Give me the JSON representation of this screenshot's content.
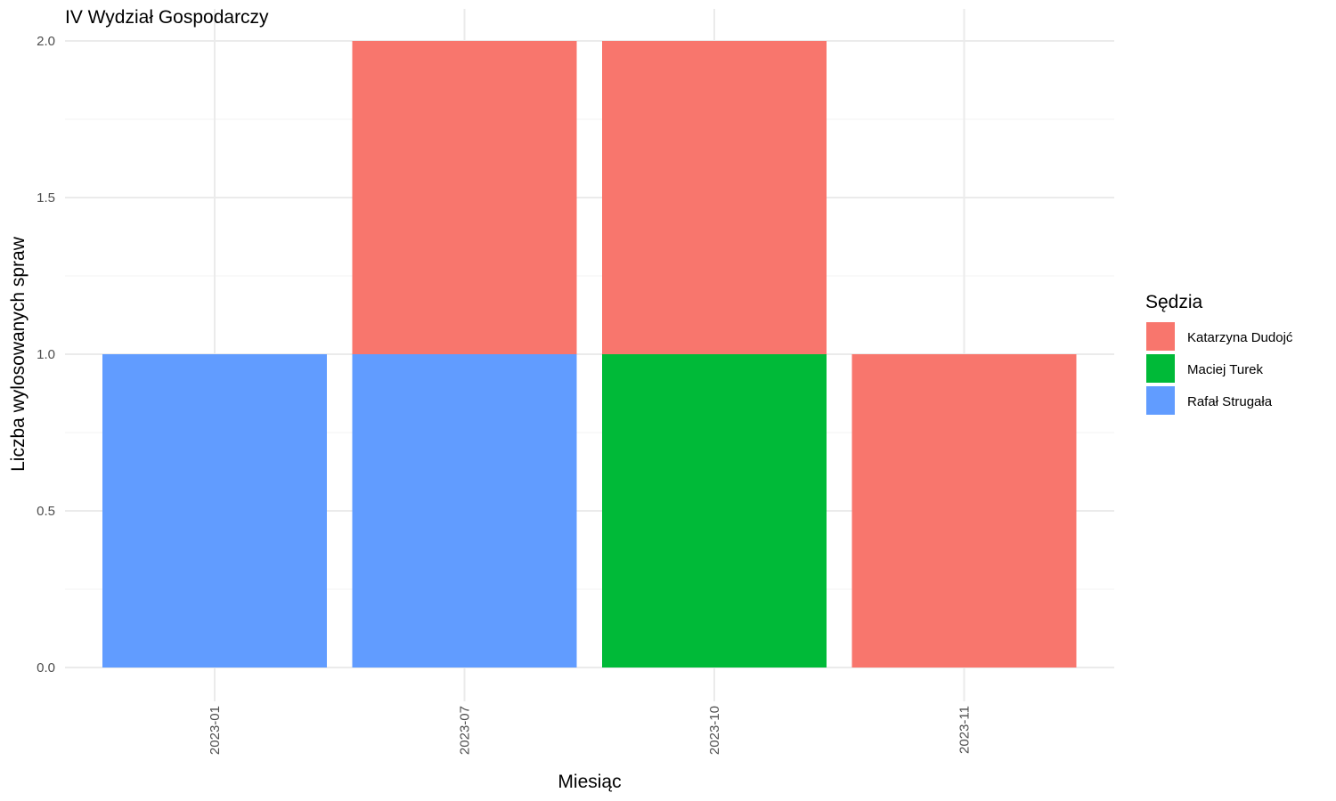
{
  "chart_data": {
    "type": "bar",
    "stacked": true,
    "title": "IV Wydział Gospodarczy",
    "xlabel": "Miesiąc",
    "ylabel": "Liczba wylosowanych spraw",
    "categories": [
      "2023-01",
      "2023-07",
      "2023-10",
      "2023-11"
    ],
    "ylim": [
      0,
      2
    ],
    "yticks": [
      "0.0",
      "0.5",
      "1.0",
      "1.5",
      "2.0"
    ],
    "series": [
      {
        "name": "Rafał Strugała",
        "color": "#619CFF",
        "values": [
          1,
          1,
          0,
          0
        ]
      },
      {
        "name": "Maciej Turek",
        "color": "#00BA38",
        "values": [
          0,
          0,
          1,
          0
        ]
      },
      {
        "name": "Katarzyna Dudojć",
        "color": "#F8766D",
        "values": [
          0,
          1,
          1,
          1
        ]
      }
    ],
    "legend": {
      "title": "Sędzia",
      "placement": "right",
      "order": [
        "Katarzyna Dudojć",
        "Maciej Turek",
        "Rafał Strugała"
      ]
    },
    "grid": true
  }
}
